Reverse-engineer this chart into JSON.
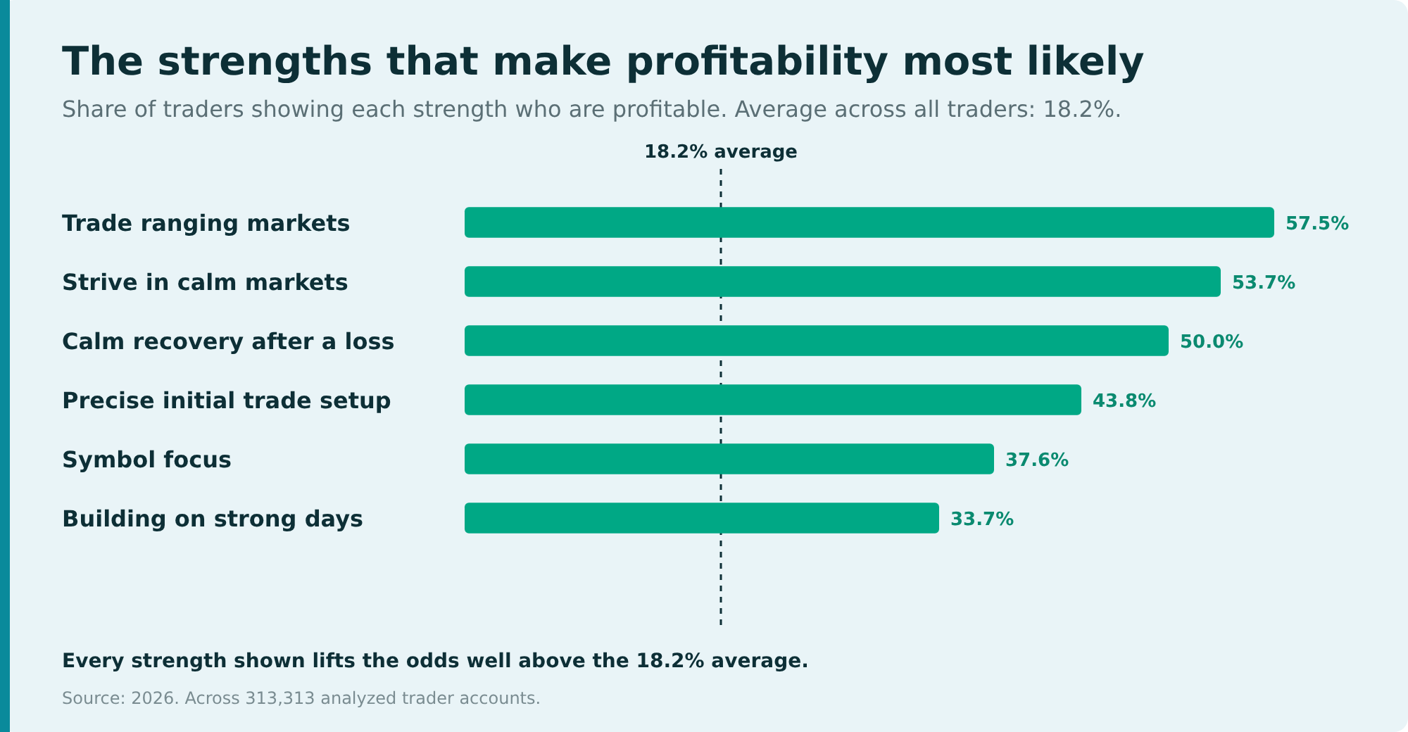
{
  "chart_data": {
    "type": "bar",
    "orientation": "horizontal",
    "title": "The strengths that make profitability most likely",
    "subtitle": "Share of traders showing each strength who are profitable. Average across all traders: 18.2%.",
    "categories": [
      "Trade ranging markets",
      "Strive in calm markets",
      "Calm recovery after a loss",
      "Precise initial trade setup",
      "Symbol focus",
      "Building on strong days"
    ],
    "values": [
      57.5,
      53.7,
      50.0,
      43.8,
      37.6,
      33.7
    ],
    "value_labels": [
      "57.5%",
      "53.7%",
      "50.0%",
      "43.8%",
      "37.6%",
      "33.7%"
    ],
    "color": "#00a885",
    "xlim": [
      0,
      57.5
    ],
    "tick_labels": "y",
    "ref_lines": [
      {
        "axis": "x",
        "value": 18.2,
        "label": "18.2% average",
        "color": "#0d2f36",
        "line_style": "dashed"
      }
    ],
    "annotations": [
      "Every strength shown lifts the odds well above the 18.2% average.",
      "Source: 2026. Across 313,313 analyzed trader accounts."
    ]
  }
}
